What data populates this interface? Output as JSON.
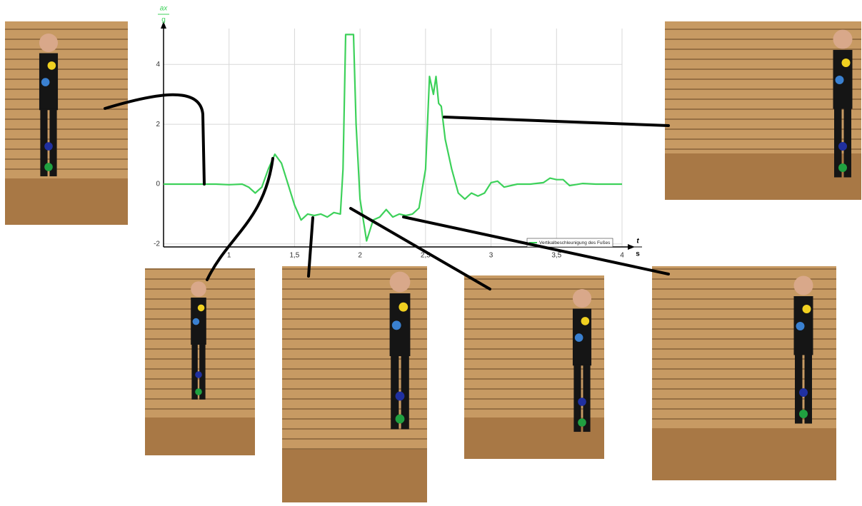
{
  "chart_data": {
    "type": "line",
    "y_label": {
      "numerator": "ax",
      "denominator": "g"
    },
    "x_label": {
      "numerator": "t",
      "denominator": "s"
    },
    "x": [
      0.5,
      0.7,
      0.9,
      1.0,
      1.1,
      1.15,
      1.2,
      1.25,
      1.3,
      1.35,
      1.4,
      1.45,
      1.5,
      1.55,
      1.6,
      1.65,
      1.7,
      1.75,
      1.8,
      1.85,
      1.87,
      1.89,
      1.95,
      1.97,
      2.0,
      2.05,
      2.1,
      2.15,
      2.2,
      2.25,
      2.3,
      2.35,
      2.4,
      2.45,
      2.5,
      2.53,
      2.56,
      2.58,
      2.6,
      2.62,
      2.65,
      2.7,
      2.75,
      2.8,
      2.85,
      2.9,
      2.95,
      3.0,
      3.05,
      3.1,
      3.2,
      3.3,
      3.4,
      3.45,
      3.5,
      3.55,
      3.6,
      3.7,
      3.8,
      4.0
    ],
    "series": [
      {
        "name": "Vertikalbeschleunigung des Fußes",
        "color": "#3dd15a",
        "values": [
          0,
          0,
          0,
          -0.02,
          0,
          -0.1,
          -0.3,
          -0.1,
          0.5,
          1.0,
          0.7,
          0,
          -0.7,
          -1.2,
          -1.0,
          -1.05,
          -1.0,
          -1.1,
          -0.95,
          -1.0,
          0.5,
          5.0,
          5.0,
          2.0,
          -0.5,
          -1.9,
          -1.2,
          -1.1,
          -0.85,
          -1.1,
          -1.0,
          -1.05,
          -1.0,
          -0.8,
          0.5,
          3.6,
          3.0,
          3.6,
          2.7,
          2.6,
          1.5,
          0.5,
          -0.3,
          -0.5,
          -0.3,
          -0.4,
          -0.3,
          0.05,
          0.1,
          -0.1,
          0,
          0,
          0.05,
          0.2,
          0.15,
          0.15,
          -0.05,
          0.02,
          0,
          0
        ]
      }
    ],
    "xlim": [
      0.5,
      4.0
    ],
    "ylim": [
      -2.1,
      5.2
    ],
    "xticks": [
      1,
      {
        "value": 1.5,
        "label": "1,5"
      },
      2,
      {
        "value": 2.5,
        "label": "2,5"
      },
      3,
      {
        "value": 3.5,
        "label": "3,5"
      },
      4
    ],
    "yticks": [
      -2,
      0,
      2,
      4
    ],
    "grid": true,
    "legend": "lower right"
  }
}
